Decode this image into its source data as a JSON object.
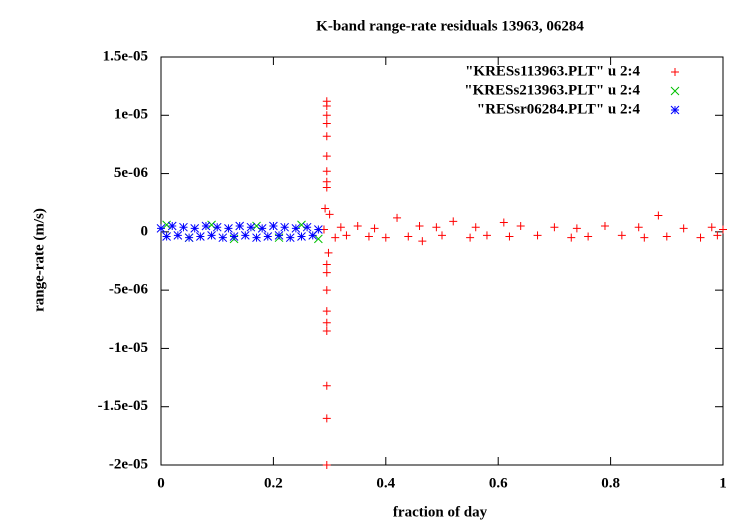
{
  "chart_data": {
    "type": "scatter",
    "title": "K-band range-rate residuals 13963, 06284",
    "xlabel": "fraction of day",
    "ylabel": "range-rate (m/s)",
    "xlim": [
      0,
      1
    ],
    "ylim": [
      -2e-05,
      1.5e-05
    ],
    "xticks": [
      0,
      0.2,
      0.4,
      0.6,
      0.8,
      1
    ],
    "yticks": [
      {
        "value": 1.5e-05,
        "label": "1.5e-05"
      },
      {
        "value": 1e-05,
        "label": "1e-05"
      },
      {
        "value": 5e-06,
        "label": "5e-06"
      },
      0,
      {
        "value": -5e-06,
        "label": "-5e-06"
      },
      {
        "value": -1e-05,
        "label": "-1e-05"
      },
      {
        "value": -1.5e-05,
        "label": "-1.5e-05"
      },
      {
        "value": -2e-05,
        "label": "-2e-05"
      }
    ],
    "legend": "top-right",
    "series": [
      {
        "name": "\"KRESs113963.PLT\" u 2:4",
        "color": "#ff0000",
        "marker": "plus",
        "x": [
          0.29,
          0.295,
          0.295,
          0.295,
          0.295,
          0.295,
          0.295,
          0.295,
          0.295,
          0.295,
          0.295,
          0.295,
          0.295,
          0.295,
          0.295,
          0.295,
          0.295,
          0.295,
          0.295,
          0.292,
          0.298,
          0.3,
          0.31,
          0.32,
          0.33,
          0.35,
          0.37,
          0.38,
          0.4,
          0.42,
          0.44,
          0.46,
          0.465,
          0.49,
          0.5,
          0.52,
          0.55,
          0.56,
          0.58,
          0.61,
          0.62,
          0.64,
          0.67,
          0.7,
          0.73,
          0.74,
          0.76,
          0.79,
          0.82,
          0.85,
          0.86,
          0.885,
          0.9,
          0.93,
          0.96,
          0.98,
          0.99,
          1.0
        ],
        "values": [
          2e-07,
          1.12e-05,
          1.08e-05,
          1e-05,
          9.3e-06,
          8.2e-06,
          6.5e-06,
          5.2e-06,
          4.3e-06,
          3.8e-06,
          -2.8e-06,
          -3.5e-06,
          -5e-06,
          -6.8e-06,
          -7.8e-06,
          -8.5e-06,
          -1.32e-05,
          -1.6e-05,
          -2e-05,
          2e-06,
          -1.8e-06,
          1.5e-06,
          -5e-07,
          4e-07,
          -3e-07,
          5e-07,
          -4e-07,
          3e-07,
          -5e-07,
          1.2e-06,
          -4e-07,
          5e-07,
          -8e-07,
          4e-07,
          -3e-07,
          9e-07,
          -5e-07,
          4e-07,
          -3e-07,
          8e-07,
          -4e-07,
          5e-07,
          -3e-07,
          4e-07,
          -5e-07,
          3e-07,
          -4e-07,
          5e-07,
          -3e-07,
          4e-07,
          -5e-07,
          1.4e-06,
          -4e-07,
          3e-07,
          -5e-07,
          4e-07,
          -3e-07,
          2e-07
        ]
      },
      {
        "name": "\"KRESs213963.PLT\" u 2:4",
        "color": "#00c000",
        "marker": "cross",
        "x": [
          0.01,
          0.05,
          0.09,
          0.13,
          0.17,
          0.21,
          0.25,
          0.28
        ],
        "values": [
          6e-07,
          -5e-07,
          6e-07,
          -6e-07,
          5e-07,
          -5e-07,
          6e-07,
          -6e-07
        ]
      },
      {
        "name": "\"RESsr06284.PLT\" u 2:4",
        "color": "#0000ff",
        "marker": "star",
        "x": [
          0.0,
          0.01,
          0.02,
          0.03,
          0.04,
          0.05,
          0.06,
          0.07,
          0.08,
          0.09,
          0.1,
          0.11,
          0.12,
          0.13,
          0.14,
          0.15,
          0.16,
          0.17,
          0.18,
          0.19,
          0.2,
          0.21,
          0.22,
          0.23,
          0.24,
          0.25,
          0.26,
          0.27,
          0.28
        ],
        "values": [
          3e-07,
          -4e-07,
          5e-07,
          -3e-07,
          4e-07,
          -5e-07,
          3e-07,
          -4e-07,
          5e-07,
          -3e-07,
          4e-07,
          -5e-07,
          3e-07,
          -4e-07,
          5e-07,
          -3e-07,
          4e-07,
          -5e-07,
          3e-07,
          -4e-07,
          5e-07,
          -3e-07,
          4e-07,
          -5e-07,
          3e-07,
          -4e-07,
          4e-07,
          -3e-07,
          2e-07
        ]
      }
    ]
  }
}
